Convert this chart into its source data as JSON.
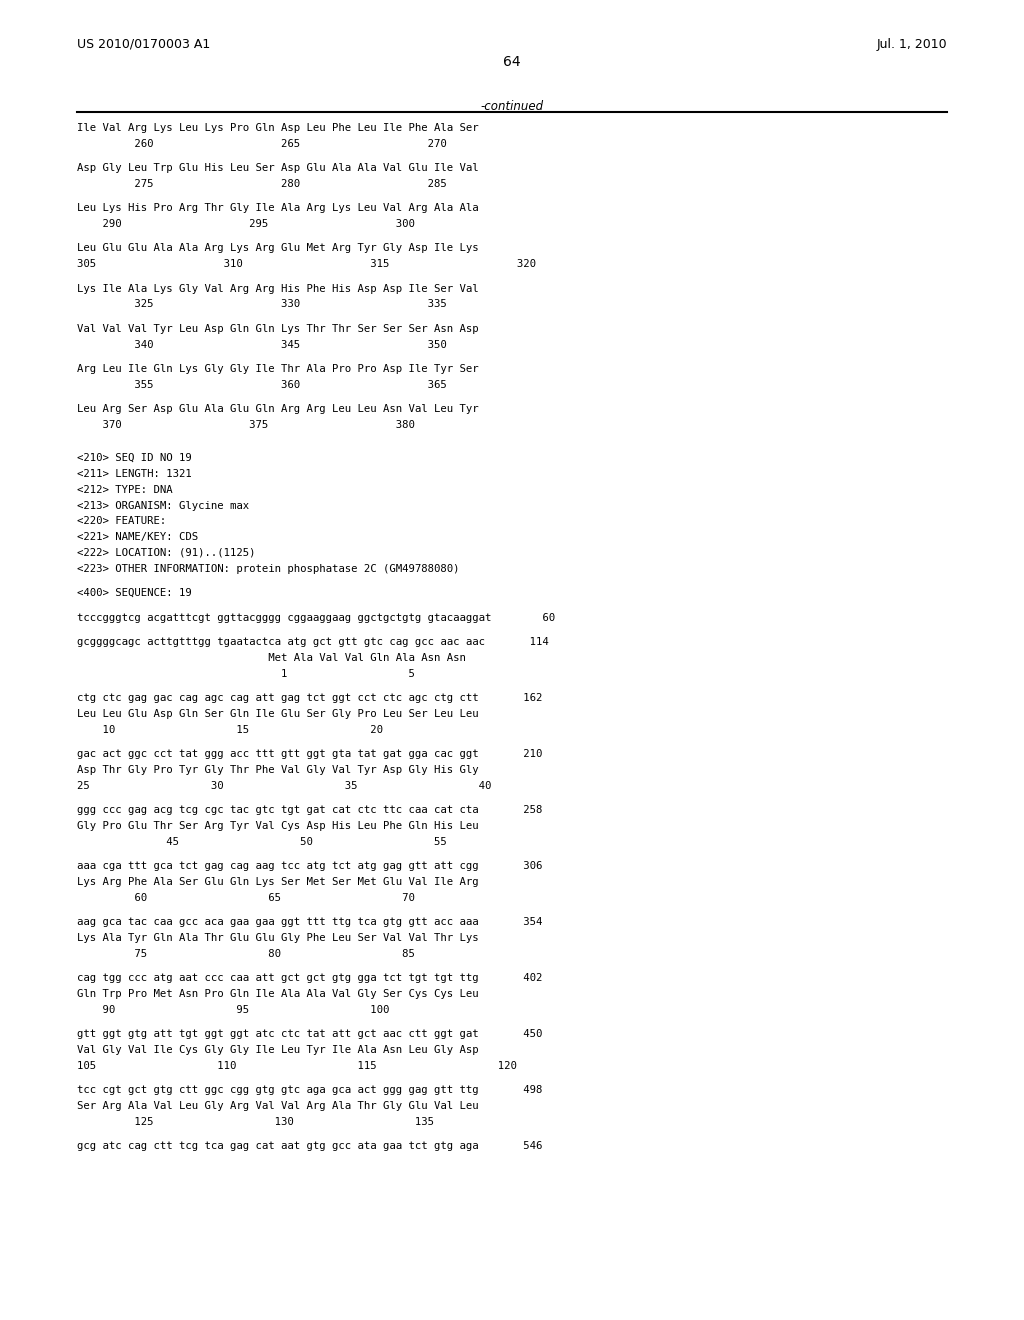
{
  "header_left": "US 2010/0170003 A1",
  "header_right": "Jul. 1, 2010",
  "page_number": "64",
  "continued_text": "-continued",
  "background_color": "#ffffff",
  "text_color": "#000000",
  "content_lines": [
    "Ile Val Arg Lys Leu Lys Pro Gln Asp Leu Phe Leu Ile Phe Ala Ser",
    "         260                    265                    270",
    "",
    "Asp Gly Leu Trp Glu His Leu Ser Asp Glu Ala Ala Val Glu Ile Val",
    "         275                    280                    285",
    "",
    "Leu Lys His Pro Arg Thr Gly Ile Ala Arg Lys Leu Val Arg Ala Ala",
    "    290                    295                    300",
    "",
    "Leu Glu Glu Ala Ala Arg Lys Arg Glu Met Arg Tyr Gly Asp Ile Lys",
    "305                    310                    315                    320",
    "",
    "Lys Ile Ala Lys Gly Val Arg Arg His Phe His Asp Asp Ile Ser Val",
    "         325                    330                    335",
    "",
    "Val Val Val Tyr Leu Asp Gln Gln Lys Thr Thr Ser Ser Ser Asn Asp",
    "         340                    345                    350",
    "",
    "Arg Leu Ile Gln Lys Gly Gly Ile Thr Ala Pro Pro Asp Ile Tyr Ser",
    "         355                    360                    365",
    "",
    "Leu Arg Ser Asp Glu Ala Glu Gln Arg Arg Leu Leu Asn Val Leu Tyr",
    "    370                    375                    380",
    "",
    "",
    "<210> SEQ ID NO 19",
    "<211> LENGTH: 1321",
    "<212> TYPE: DNA",
    "<213> ORGANISM: Glycine max",
    "<220> FEATURE:",
    "<221> NAME/KEY: CDS",
    "<222> LOCATION: (91)..(1125)",
    "<223> OTHER INFORMATION: protein phosphatase 2C (GM49788080)",
    "",
    "<400> SEQUENCE: 19",
    "",
    "tcccgggtcg acgatttcgt ggttacgggg cggaaggaag ggctgctgtg gtacaaggat        60",
    "",
    "gcggggcagc acttgtttgg tgaatactca atg gct gtt gtc cag gcc aac aac       114",
    "                              Met Ala Val Val Gln Ala Asn Asn",
    "                                1                   5",
    "",
    "ctg ctc gag gac cag agc cag att gag tct ggt cct ctc agc ctg ctt       162",
    "Leu Leu Glu Asp Gln Ser Gln Ile Glu Ser Gly Pro Leu Ser Leu Leu",
    "    10                   15                   20",
    "",
    "gac act ggc cct tat ggg acc ttt gtt ggt gta tat gat gga cac ggt       210",
    "Asp Thr Gly Pro Tyr Gly Thr Phe Val Gly Val Tyr Asp Gly His Gly",
    "25                   30                   35                   40",
    "",
    "ggg ccc gag acg tcg cgc tac gtc tgt gat cat ctc ttc caa cat cta       258",
    "Gly Pro Glu Thr Ser Arg Tyr Val Cys Asp His Leu Phe Gln His Leu",
    "              45                   50                   55",
    "",
    "aaa cga ttt gca tct gag cag aag tcc atg tct atg gag gtt att cgg       306",
    "Lys Arg Phe Ala Ser Glu Gln Lys Ser Met Ser Met Glu Val Ile Arg",
    "         60                   65                   70",
    "",
    "aag gca tac caa gcc aca gaa gaa ggt ttt ttg tca gtg gtt acc aaa       354",
    "Lys Ala Tyr Gln Ala Thr Glu Glu Gly Phe Leu Ser Val Val Thr Lys",
    "         75                   80                   85",
    "",
    "cag tgg ccc atg aat ccc caa att gct gct gtg gga tct tgt tgt ttg       402",
    "Gln Trp Pro Met Asn Pro Gln Ile Ala Ala Val Gly Ser Cys Cys Leu",
    "    90                   95                   100",
    "",
    "gtt ggt gtg att tgt ggt ggt atc ctc tat att gct aac ctt ggt gat       450",
    "Val Gly Val Ile Cys Gly Gly Ile Leu Tyr Ile Ala Asn Leu Gly Asp",
    "105                   110                   115                   120",
    "",
    "tcc cgt gct gtg ctt ggc cgg gtg gtc aga gca act ggg gag gtt ttg       498",
    "Ser Arg Ala Val Leu Gly Arg Val Val Arg Ala Thr Gly Glu Val Leu",
    "         125                   130                   135",
    "",
    "gcg atc cag ctt tcg tca gag cat aat gtg gcc ata gaa tct gtg aga       546"
  ]
}
